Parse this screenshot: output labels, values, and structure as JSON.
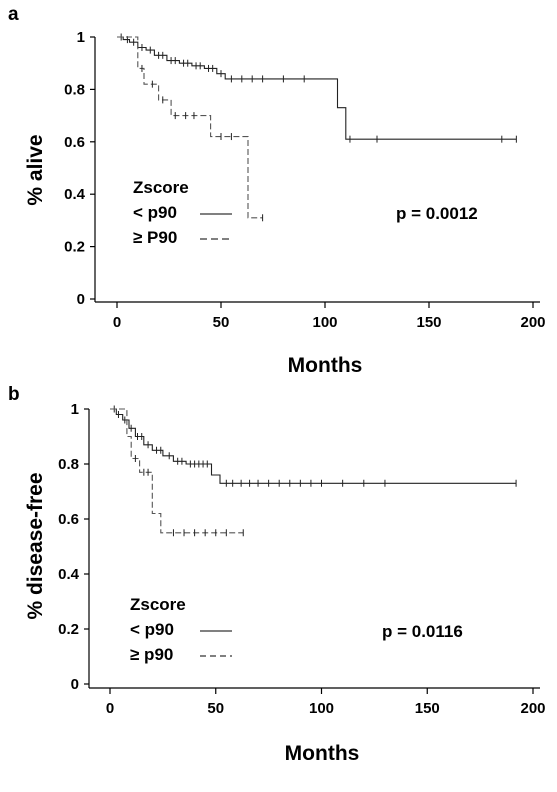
{
  "chart_data": [
    {
      "panel": "a",
      "type": "line",
      "xlabel": "Months",
      "ylabel": "% alive",
      "xlim": [
        -10,
        200
      ],
      "ylim": [
        0,
        1
      ],
      "xticks": [
        "0",
        "50",
        "100",
        "150",
        "200"
      ],
      "yticks": [
        "0",
        "0.2",
        "0.4",
        "0.6",
        "0.8",
        "1"
      ],
      "legend_title": "Zscore",
      "legend": [
        {
          "label": "< p90",
          "style": "solid"
        },
        {
          "label": "≥ P90",
          "style": "dashed"
        }
      ],
      "pvalue": "p = 0.0012",
      "series": [
        {
          "name": "< p90",
          "style": "solid",
          "steps": [
            [
              0,
              1
            ],
            [
              3,
              1
            ],
            [
              3,
              0.99
            ],
            [
              6,
              0.99
            ],
            [
              6,
              0.98
            ],
            [
              10,
              0.98
            ],
            [
              10,
              0.96
            ],
            [
              14,
              0.96
            ],
            [
              14,
              0.95
            ],
            [
              18,
              0.95
            ],
            [
              18,
              0.93
            ],
            [
              24,
              0.93
            ],
            [
              24,
              0.91
            ],
            [
              30,
              0.91
            ],
            [
              30,
              0.9
            ],
            [
              36,
              0.9
            ],
            [
              36,
              0.89
            ],
            [
              42,
              0.89
            ],
            [
              42,
              0.88
            ],
            [
              48,
              0.88
            ],
            [
              48,
              0.86
            ],
            [
              52,
              0.86
            ],
            [
              52,
              0.84
            ],
            [
              106,
              0.84
            ],
            [
              106,
              0.73
            ],
            [
              110,
              0.73
            ],
            [
              110,
              0.61
            ],
            [
              192,
              0.61
            ]
          ],
          "censor_x": [
            2,
            5,
            8,
            12,
            16,
            20,
            22,
            26,
            28,
            32,
            34,
            38,
            40,
            44,
            46,
            50,
            55,
            60,
            65,
            70,
            80,
            90,
            112,
            125,
            185,
            192
          ]
        },
        {
          "name": "≥ P90",
          "style": "dashed",
          "steps": [
            [
              0,
              1
            ],
            [
              10,
              1
            ],
            [
              10,
              0.88
            ],
            [
              13,
              0.88
            ],
            [
              13,
              0.82
            ],
            [
              20,
              0.82
            ],
            [
              20,
              0.76
            ],
            [
              26,
              0.76
            ],
            [
              26,
              0.7
            ],
            [
              45,
              0.7
            ],
            [
              45,
              0.62
            ],
            [
              63,
              0.62
            ],
            [
              63,
              0.31
            ],
            [
              70,
              0.31
            ]
          ],
          "censor_x": [
            12,
            17,
            22,
            28,
            33,
            37,
            50,
            55,
            70
          ]
        }
      ]
    },
    {
      "panel": "b",
      "type": "line",
      "xlabel": "Months",
      "ylabel": "% disease-free",
      "xlim": [
        -10,
        200
      ],
      "ylim": [
        0,
        1
      ],
      "xticks": [
        "0",
        "50",
        "100",
        "150",
        "200"
      ],
      "yticks": [
        "0",
        "0.2",
        "0.4",
        "0.6",
        "0.8",
        "1"
      ],
      "legend_title": "Zscore",
      "legend": [
        {
          "label": "< p90",
          "style": "solid"
        },
        {
          "label": "≥ p90",
          "style": "dashed"
        }
      ],
      "pvalue": "p  = 0.0116",
      "series": [
        {
          "name": "< p90",
          "style": "solid",
          "steps": [
            [
              0,
              1
            ],
            [
              3,
              1
            ],
            [
              3,
              0.98
            ],
            [
              6,
              0.98
            ],
            [
              6,
              0.96
            ],
            [
              9,
              0.96
            ],
            [
              9,
              0.93
            ],
            [
              12,
              0.93
            ],
            [
              12,
              0.9
            ],
            [
              16,
              0.9
            ],
            [
              16,
              0.87
            ],
            [
              20,
              0.87
            ],
            [
              20,
              0.85
            ],
            [
              25,
              0.85
            ],
            [
              25,
              0.83
            ],
            [
              30,
              0.83
            ],
            [
              30,
              0.81
            ],
            [
              36,
              0.81
            ],
            [
              36,
              0.8
            ],
            [
              48,
              0.8
            ],
            [
              48,
              0.76
            ],
            [
              52,
              0.76
            ],
            [
              52,
              0.73
            ],
            [
              192,
              0.73
            ]
          ],
          "censor_x": [
            2,
            4,
            7,
            10,
            13,
            15,
            18,
            22,
            24,
            28,
            32,
            34,
            38,
            40,
            42,
            44,
            46,
            55,
            58,
            62,
            66,
            70,
            75,
            80,
            85,
            90,
            95,
            100,
            110,
            120,
            130,
            192
          ]
        },
        {
          "name": "≥ p90",
          "style": "dashed",
          "steps": [
            [
              0,
              1
            ],
            [
              8,
              1
            ],
            [
              8,
              0.9
            ],
            [
              10,
              0.9
            ],
            [
              10,
              0.82
            ],
            [
              14,
              0.82
            ],
            [
              14,
              0.77
            ],
            [
              20,
              0.77
            ],
            [
              20,
              0.62
            ],
            [
              24,
              0.62
            ],
            [
              24,
              0.55
            ],
            [
              63,
              0.55
            ]
          ],
          "censor_x": [
            12,
            16,
            18,
            30,
            35,
            40,
            45,
            50,
            55,
            63
          ]
        }
      ]
    }
  ]
}
